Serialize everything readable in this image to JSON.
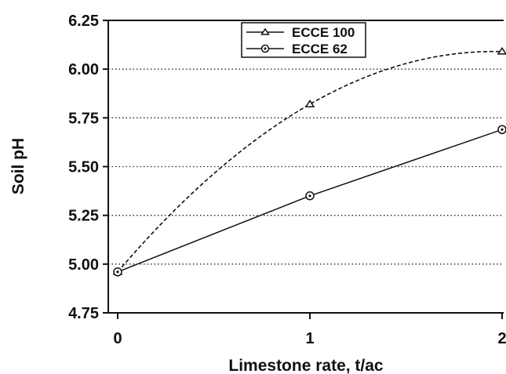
{
  "chart_data": {
    "type": "line",
    "title": "",
    "xlabel": "Limestone rate, t/ac",
    "ylabel": "Soil pH",
    "xlim": [
      0,
      2
    ],
    "ylim": [
      4.75,
      6.25
    ],
    "x_ticks": [
      "0",
      "1",
      "2"
    ],
    "y_ticks": [
      "4.75",
      "5.00",
      "5.25",
      "5.50",
      "5.75",
      "6.00",
      "6.25"
    ],
    "grid": "horizontal dotted",
    "legend_position": "top-center",
    "series": [
      {
        "name": "ECCE 100",
        "marker": "triangle",
        "line_style": "dashed",
        "x": [
          0,
          1,
          2
        ],
        "y": [
          4.96,
          5.82,
          6.09
        ]
      },
      {
        "name": "ECCE  62",
        "marker": "circle-dot",
        "line_style": "solid",
        "x": [
          0,
          1,
          2
        ],
        "y": [
          4.96,
          5.35,
          5.69
        ]
      }
    ]
  }
}
